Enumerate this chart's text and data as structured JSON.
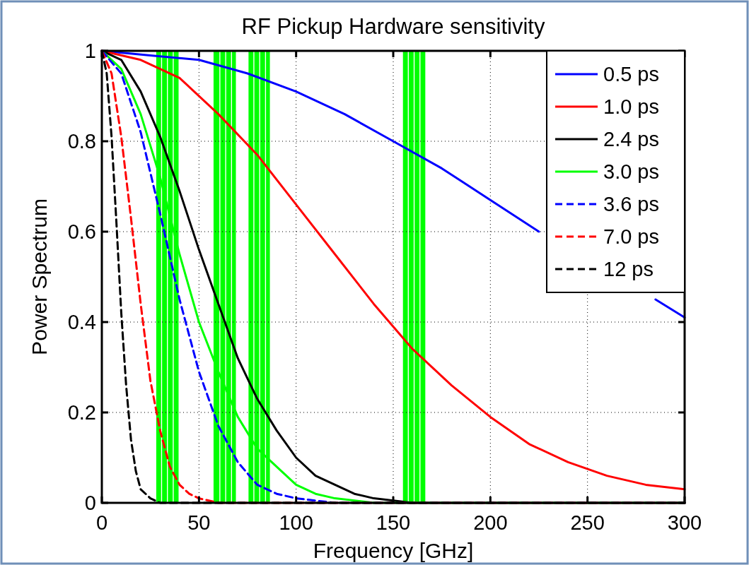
{
  "chart_data": {
    "type": "line",
    "title": "RF Pickup Hardware sensitivity",
    "xlabel": "Frequency [GHz]",
    "ylabel": "Power Spectrum",
    "xlim": [
      0,
      300
    ],
    "xticks": [
      0,
      50,
      100,
      150,
      200,
      250,
      300
    ],
    "ylim": [
      0,
      1
    ],
    "yticks": [
      0,
      0.2,
      0.4,
      0.6,
      0.8,
      1
    ],
    "grid": true,
    "legend": "top right",
    "marker": "none",
    "series": [
      {
        "name": "0.5 ps",
        "color": "#0000ff",
        "line_style": "solid",
        "x": [
          0,
          25,
          50,
          75,
          100,
          125,
          150,
          175,
          200,
          225,
          250,
          275,
          285,
          300
        ],
        "values": [
          1,
          0.99,
          0.98,
          0.95,
          0.91,
          0.86,
          0.8,
          0.74,
          0.67,
          0.6,
          null,
          null,
          0.45,
          0.41
        ]
      },
      {
        "name": "1.0 ps",
        "color": "#ff0000",
        "line_style": "solid",
        "x": [
          0,
          20,
          40,
          60,
          80,
          100,
          120,
          140,
          160,
          180,
          200,
          220,
          240,
          260,
          280,
          300
        ],
        "values": [
          1,
          0.98,
          0.94,
          0.86,
          0.77,
          0.66,
          0.55,
          0.44,
          0.34,
          0.26,
          0.19,
          0.13,
          0.09,
          0.06,
          0.04,
          0.03
        ]
      },
      {
        "name": "2.4 ps",
        "color": "#000000",
        "line_style": "solid",
        "x": [
          0,
          10,
          20,
          30,
          40,
          50,
          60,
          70,
          80,
          90,
          100,
          110,
          120,
          130,
          140,
          160,
          300
        ],
        "values": [
          1,
          0.98,
          0.91,
          0.81,
          0.69,
          0.56,
          0.44,
          0.32,
          0.23,
          0.16,
          0.1,
          0.06,
          0.04,
          0.02,
          0.01,
          0,
          0
        ]
      },
      {
        "name": "3.0 ps",
        "color": "#00ff00",
        "line_style": "solid",
        "x": [
          0,
          10,
          20,
          30,
          40,
          50,
          60,
          70,
          80,
          90,
          100,
          110,
          120,
          140,
          300
        ],
        "values": [
          1,
          0.96,
          0.86,
          0.72,
          0.55,
          0.4,
          0.29,
          0.19,
          0.12,
          0.08,
          0.04,
          0.02,
          0.01,
          0,
          0
        ]
      },
      {
        "name": "3.6 ps",
        "color": "#0000ff",
        "line_style": "dashed",
        "x": [
          0,
          10,
          20,
          30,
          40,
          50,
          60,
          70,
          80,
          90,
          100,
          120,
          300
        ],
        "values": [
          1,
          0.95,
          0.82,
          0.64,
          0.45,
          0.29,
          0.17,
          0.09,
          0.04,
          0.02,
          0.01,
          0,
          0
        ]
      },
      {
        "name": "7.0 ps",
        "color": "#ff0000",
        "line_style": "dashed",
        "x": [
          0,
          5,
          10,
          15,
          20,
          25,
          30,
          35,
          40,
          45,
          50,
          60,
          300
        ],
        "values": [
          1,
          0.95,
          0.81,
          0.63,
          0.44,
          0.27,
          0.16,
          0.08,
          0.04,
          0.02,
          0.01,
          0,
          0
        ]
      },
      {
        "name": "12 ps",
        "color": "#000000",
        "line_style": "dashed",
        "x": [
          0,
          2.5,
          5,
          7.5,
          10,
          12.5,
          15,
          17.5,
          20,
          25,
          30,
          300
        ],
        "values": [
          1,
          0.95,
          0.81,
          0.62,
          0.42,
          0.26,
          0.14,
          0.07,
          0.03,
          0.01,
          0,
          0
        ]
      }
    ],
    "bands": [
      {
        "axis": "x",
        "from": 28,
        "to": 30.5,
        "color": "#00ff00"
      },
      {
        "axis": "x",
        "from": 31,
        "to": 33.5,
        "color": "#00ff00"
      },
      {
        "axis": "x",
        "from": 34,
        "to": 36.5,
        "color": "#00ff00"
      },
      {
        "axis": "x",
        "from": 37,
        "to": 39.5,
        "color": "#00ff00"
      },
      {
        "axis": "x",
        "from": 57.5,
        "to": 60.5,
        "color": "#00ff00"
      },
      {
        "axis": "x",
        "from": 61,
        "to": 63.5,
        "color": "#00ff00"
      },
      {
        "axis": "x",
        "from": 64,
        "to": 66.5,
        "color": "#00ff00"
      },
      {
        "axis": "x",
        "from": 67,
        "to": 69,
        "color": "#00ff00"
      },
      {
        "axis": "x",
        "from": 75.5,
        "to": 78,
        "color": "#00ff00"
      },
      {
        "axis": "x",
        "from": 78.5,
        "to": 81,
        "color": "#00ff00"
      },
      {
        "axis": "x",
        "from": 81.5,
        "to": 84,
        "color": "#00ff00"
      },
      {
        "axis": "x",
        "from": 84.5,
        "to": 86.5,
        "color": "#00ff00"
      },
      {
        "axis": "x",
        "from": 155,
        "to": 157.5,
        "color": "#00ff00"
      },
      {
        "axis": "x",
        "from": 158,
        "to": 160.5,
        "color": "#00ff00"
      },
      {
        "axis": "x",
        "from": 161,
        "to": 163.5,
        "color": "#00ff00"
      },
      {
        "axis": "x",
        "from": 164,
        "to": 166.5,
        "color": "#00ff00"
      }
    ]
  }
}
